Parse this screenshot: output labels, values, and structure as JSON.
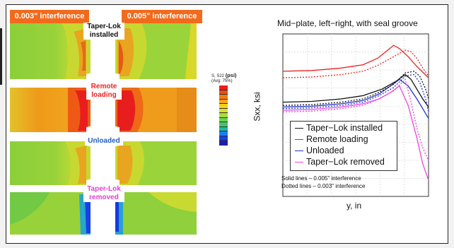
{
  "fea": {
    "tag_left": "0.003\" interference",
    "tag_right": "0.005\" interference",
    "stages": [
      {
        "label": "Taper-Lok\ninstalled",
        "color": "#111111"
      },
      {
        "label": "Remote\nloading",
        "color": "#ee2222"
      },
      {
        "label": "Unloaded",
        "color": "#1f5fbf"
      },
      {
        "label": "Taper-Lok\nremoved",
        "color": "#e040d0"
      }
    ],
    "contour_legend": {
      "title_small": "S, S22",
      "title_unit": "(psi)",
      "subtitle": "(Avg: 75%)",
      "colors": [
        "#ee1c1c",
        "#f04a14",
        "#f57a10",
        "#f9a611",
        "#f6d01a",
        "#d9e12a",
        "#a6dd3a",
        "#6fd24a",
        "#3fc86a",
        "#1fb7a8",
        "#1a7ff0",
        "#1a3fe8",
        "#1520b8"
      ]
    }
  },
  "chart_data": {
    "type": "line",
    "title": "Mid−plate, left−right, with seal groove",
    "xlabel": "y, in",
    "ylabel": "Sxx, ksi",
    "grid": true,
    "xlim": [
      0,
      1
    ],
    "ylim": [
      0,
      1
    ],
    "series": [
      {
        "name": "Taper−Lok installed",
        "color": "#111111",
        "style": "solid",
        "x": [
          0,
          0.2,
          0.4,
          0.55,
          0.68,
          0.78,
          0.84,
          0.88,
          0.92,
          0.96,
          1.0
        ],
        "y": [
          0.58,
          0.585,
          0.6,
          0.62,
          0.66,
          0.71,
          0.75,
          0.72,
          0.66,
          0.6,
          0.55
        ]
      },
      {
        "name": "Remote loading",
        "color": "#ee2222",
        "style": "solid",
        "x": [
          0,
          0.2,
          0.4,
          0.55,
          0.65,
          0.72,
          0.76,
          0.8,
          0.86,
          0.92,
          1.0
        ],
        "y": [
          0.77,
          0.775,
          0.79,
          0.81,
          0.85,
          0.9,
          0.93,
          0.91,
          0.86,
          0.8,
          0.73
        ]
      },
      {
        "name": "Unloaded",
        "color": "#2233cc",
        "style": "solid",
        "x": [
          0,
          0.2,
          0.4,
          0.55,
          0.66,
          0.74,
          0.8,
          0.86,
          0.92,
          0.96,
          1.0
        ],
        "y": [
          0.55,
          0.555,
          0.57,
          0.59,
          0.63,
          0.68,
          0.72,
          0.68,
          0.6,
          0.54,
          0.48
        ]
      },
      {
        "name": "Taper−Lok removed",
        "color": "#ee44dd",
        "style": "solid",
        "x": [
          0,
          0.2,
          0.4,
          0.55,
          0.66,
          0.74,
          0.8,
          0.86,
          0.92,
          0.96,
          1.0
        ],
        "y": [
          0.53,
          0.535,
          0.55,
          0.57,
          0.6,
          0.64,
          0.68,
          0.56,
          0.36,
          0.2,
          0.1
        ]
      },
      {
        "name": "",
        "color": "#111111",
        "style": "dotted",
        "x": [
          0,
          0.2,
          0.4,
          0.55,
          0.66,
          0.76,
          0.84,
          0.9,
          0.94,
          0.98,
          1.0
        ],
        "y": [
          0.56,
          0.565,
          0.58,
          0.6,
          0.64,
          0.69,
          0.76,
          0.77,
          0.74,
          0.66,
          0.6
        ]
      },
      {
        "name": "",
        "color": "#ee2222",
        "style": "dotted",
        "x": [
          0,
          0.2,
          0.4,
          0.55,
          0.66,
          0.76,
          0.84,
          0.88,
          0.92,
          0.96,
          1.0
        ],
        "y": [
          0.73,
          0.735,
          0.75,
          0.77,
          0.81,
          0.86,
          0.9,
          0.89,
          0.85,
          0.79,
          0.74
        ]
      },
      {
        "name": "",
        "color": "#2233cc",
        "style": "dotted",
        "x": [
          0,
          0.2,
          0.4,
          0.55,
          0.66,
          0.76,
          0.84,
          0.9,
          0.94,
          0.98,
          1.0
        ],
        "y": [
          0.54,
          0.545,
          0.56,
          0.58,
          0.62,
          0.67,
          0.74,
          0.75,
          0.7,
          0.6,
          0.52
        ]
      },
      {
        "name": "",
        "color": "#ee44dd",
        "style": "dotted",
        "x": [
          0,
          0.2,
          0.4,
          0.55,
          0.66,
          0.76,
          0.84,
          0.88,
          0.92,
          0.96,
          1.0
        ],
        "y": [
          0.52,
          0.525,
          0.54,
          0.56,
          0.6,
          0.65,
          0.72,
          0.58,
          0.42,
          0.3,
          0.22
        ]
      }
    ],
    "notes": [
      "Solid lines – 0.005\" interference",
      "Dotted lines – 0.003\" interference"
    ]
  }
}
